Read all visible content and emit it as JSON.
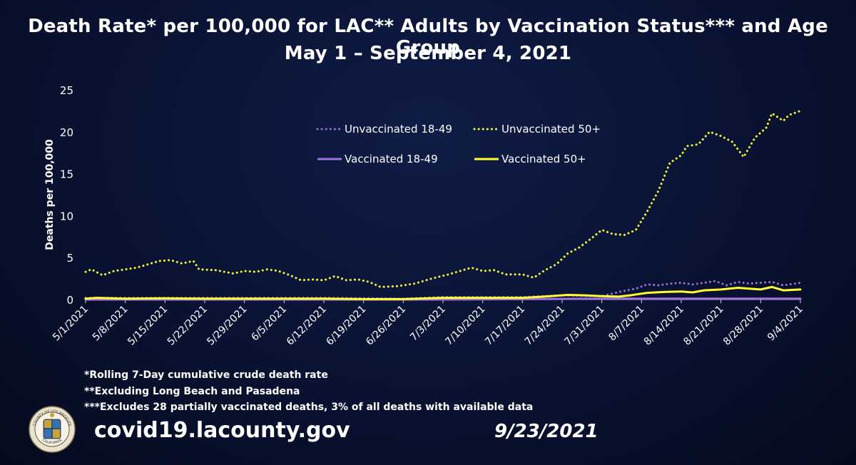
{
  "title_line1": "Death Rate* per 100,000 for LAC** Adults by Vaccination Status*** and Age Group",
  "title_line2": "May 1 – September 4, 2021",
  "footnotes": [
    "*Rolling 7-Day cumulative crude death rate",
    "**Excluding Long Beach and Pasadena",
    "***Excludes 28 partially vaccinated deaths, 3% of all deaths with available data"
  ],
  "website": "covid19.lacounty.gov",
  "report_date": "9/23/2021",
  "seal_text_top": "COUNTY OF LOS ANGELES",
  "seal_text_bottom": "CALIFORNIA",
  "colors": {
    "unvaccinated_18_49": "#9b6fd6",
    "unvaccinated_50_plus": "#f5f23a",
    "vaccinated_18_49": "#a070e0",
    "vaccinated_50_plus": "#ffff33"
  },
  "chart_data": {
    "type": "line",
    "title": "Death Rate* per 100,000 for LAC** Adults by Vaccination Status*** and Age Group",
    "subtitle": "May 1 – September 4, 2021",
    "xlabel": "",
    "ylabel": "Deaths per 100,000",
    "ylim": [
      0,
      25
    ],
    "yticks": [
      0,
      5,
      10,
      15,
      20,
      25
    ],
    "x_start": "5/1/2021",
    "x_end": "9/4/2021",
    "xticks": [
      "5/1/2021",
      "5/8/2021",
      "5/15/2021",
      "5/22/2021",
      "5/29/2021",
      "6/5/2021",
      "6/12/2021",
      "6/19/2021",
      "6/26/2021",
      "7/3/2021",
      "7/10/2021",
      "7/17/2021",
      "7/24/2021",
      "7/31/2021",
      "8/7/2021",
      "8/14/2021",
      "8/21/2021",
      "8/28/2021",
      "9/4/2021"
    ],
    "legend_position": "top-center",
    "grid": false,
    "series": [
      {
        "name": "Unvaccinated 18-49",
        "style": "dotted",
        "color": "#9b6fd6",
        "points": [
          [
            "5/1/2021",
            0.2
          ],
          [
            "5/15/2021",
            0.2
          ],
          [
            "5/29/2021",
            0.2
          ],
          [
            "6/12/2021",
            0.2
          ],
          [
            "6/26/2021",
            0.1
          ],
          [
            "7/3/2021",
            0.3
          ],
          [
            "7/10/2021",
            0.3
          ],
          [
            "7/17/2021",
            0.3
          ],
          [
            "7/24/2021",
            0.5
          ],
          [
            "7/31/2021",
            0.4
          ],
          [
            "8/3/2021",
            0.9
          ],
          [
            "8/6/2021",
            1.3
          ],
          [
            "8/8/2021",
            1.8
          ],
          [
            "8/10/2021",
            1.7
          ],
          [
            "8/12/2021",
            1.9
          ],
          [
            "8/14/2021",
            2.0
          ],
          [
            "8/16/2021",
            1.8
          ],
          [
            "8/18/2021",
            2.0
          ],
          [
            "8/20/2021",
            2.2
          ],
          [
            "8/22/2021",
            1.7
          ],
          [
            "8/24/2021",
            2.1
          ],
          [
            "8/26/2021",
            1.9
          ],
          [
            "8/28/2021",
            2.0
          ],
          [
            "8/30/2021",
            2.1
          ],
          [
            "9/1/2021",
            1.7
          ],
          [
            "9/4/2021",
            2.0
          ]
        ]
      },
      {
        "name": "Unvaccinated 50+",
        "style": "dotted",
        "color": "#f5f23a",
        "points": [
          [
            "5/1/2021",
            3.3
          ],
          [
            "5/2/2021",
            3.6
          ],
          [
            "5/4/2021",
            2.9
          ],
          [
            "5/6/2021",
            3.4
          ],
          [
            "5/8/2021",
            3.6
          ],
          [
            "5/10/2021",
            3.8
          ],
          [
            "5/12/2021",
            4.2
          ],
          [
            "5/14/2021",
            4.6
          ],
          [
            "5/16/2021",
            4.7
          ],
          [
            "5/18/2021",
            4.3
          ],
          [
            "5/20/2021",
            4.6
          ],
          [
            "5/21/2021",
            3.6
          ],
          [
            "5/24/2021",
            3.5
          ],
          [
            "5/27/2021",
            3.1
          ],
          [
            "5/29/2021",
            3.4
          ],
          [
            "5/31/2021",
            3.3
          ],
          [
            "6/2/2021",
            3.6
          ],
          [
            "6/4/2021",
            3.4
          ],
          [
            "6/6/2021",
            2.9
          ],
          [
            "6/8/2021",
            2.3
          ],
          [
            "6/10/2021",
            2.4
          ],
          [
            "6/12/2021",
            2.3
          ],
          [
            "6/14/2021",
            2.8
          ],
          [
            "6/16/2021",
            2.3
          ],
          [
            "6/18/2021",
            2.4
          ],
          [
            "6/20/2021",
            2.1
          ],
          [
            "6/22/2021",
            1.5
          ],
          [
            "6/25/2021",
            1.6
          ],
          [
            "6/28/2021",
            1.9
          ],
          [
            "7/1/2021",
            2.5
          ],
          [
            "7/4/2021",
            3.0
          ],
          [
            "7/6/2021",
            3.4
          ],
          [
            "7/8/2021",
            3.8
          ],
          [
            "7/10/2021",
            3.4
          ],
          [
            "7/12/2021",
            3.5
          ],
          [
            "7/14/2021",
            3.0
          ],
          [
            "7/17/2021",
            3.0
          ],
          [
            "7/19/2021",
            2.6
          ],
          [
            "7/21/2021",
            3.5
          ],
          [
            "7/23/2021",
            4.2
          ],
          [
            "7/25/2021",
            5.5
          ],
          [
            "7/27/2021",
            6.2
          ],
          [
            "7/29/2021",
            7.2
          ],
          [
            "7/31/2021",
            8.3
          ],
          [
            "8/2/2021",
            7.8
          ],
          [
            "8/4/2021",
            7.7
          ],
          [
            "8/6/2021",
            8.3
          ],
          [
            "8/8/2021",
            10.5
          ],
          [
            "8/10/2021",
            13.0
          ],
          [
            "8/12/2021",
            16.3
          ],
          [
            "8/14/2021",
            17.2
          ],
          [
            "8/15/2021",
            18.3
          ],
          [
            "8/17/2021",
            18.5
          ],
          [
            "8/19/2021",
            20.0
          ],
          [
            "8/21/2021",
            19.5
          ],
          [
            "8/23/2021",
            18.8
          ],
          [
            "8/25/2021",
            17.0
          ],
          [
            "8/27/2021",
            19.3
          ],
          [
            "8/29/2021",
            20.5
          ],
          [
            "8/30/2021",
            22.2
          ],
          [
            "9/1/2021",
            21.3
          ],
          [
            "9/2/2021",
            22.0
          ],
          [
            "9/4/2021",
            22.5
          ]
        ]
      },
      {
        "name": "Vaccinated 18-49",
        "style": "solid",
        "color": "#a070e0",
        "points": [
          [
            "5/1/2021",
            0.0
          ],
          [
            "6/1/2021",
            0.0
          ],
          [
            "7/1/2021",
            0.0
          ],
          [
            "8/1/2021",
            0.1
          ],
          [
            "8/15/2021",
            0.1
          ],
          [
            "8/28/2021",
            0.1
          ],
          [
            "9/4/2021",
            0.1
          ]
        ]
      },
      {
        "name": "Vaccinated 50+",
        "style": "solid",
        "color": "#ffff33",
        "points": [
          [
            "5/1/2021",
            0.1
          ],
          [
            "5/3/2021",
            0.2
          ],
          [
            "5/8/2021",
            0.1
          ],
          [
            "5/15/2021",
            0.15
          ],
          [
            "5/22/2021",
            0.1
          ],
          [
            "5/29/2021",
            0.1
          ],
          [
            "6/5/2021",
            0.1
          ],
          [
            "6/12/2021",
            0.1
          ],
          [
            "6/19/2021",
            0.05
          ],
          [
            "6/26/2021",
            0.05
          ],
          [
            "7/3/2021",
            0.2
          ],
          [
            "7/10/2021",
            0.2
          ],
          [
            "7/17/2021",
            0.2
          ],
          [
            "7/22/2021",
            0.4
          ],
          [
            "7/25/2021",
            0.55
          ],
          [
            "7/28/2021",
            0.5
          ],
          [
            "7/31/2021",
            0.4
          ],
          [
            "8/3/2021",
            0.35
          ],
          [
            "8/5/2021",
            0.5
          ],
          [
            "8/8/2021",
            0.8
          ],
          [
            "8/11/2021",
            0.9
          ],
          [
            "8/14/2021",
            0.95
          ],
          [
            "8/16/2021",
            0.85
          ],
          [
            "8/18/2021",
            1.1
          ],
          [
            "8/21/2021",
            1.2
          ],
          [
            "8/24/2021",
            1.4
          ],
          [
            "8/26/2021",
            1.3
          ],
          [
            "8/28/2021",
            1.2
          ],
          [
            "8/30/2021",
            1.5
          ],
          [
            "9/1/2021",
            1.1
          ],
          [
            "9/4/2021",
            1.2
          ]
        ]
      }
    ]
  }
}
